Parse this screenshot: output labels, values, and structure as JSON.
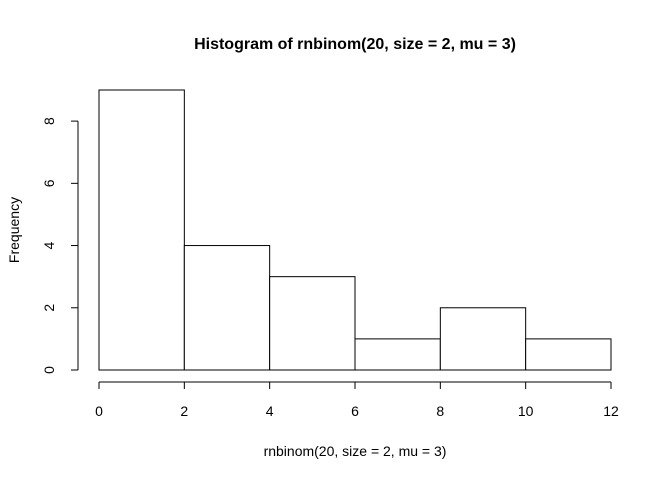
{
  "chart_data": {
    "type": "bar",
    "title": "Histogram of rnbinom(20, size = 2, mu = 3)",
    "xlabel": "rnbinom(20, size = 2, mu = 3)",
    "ylabel": "Frequency",
    "bins": [
      {
        "start": 0,
        "end": 2,
        "value": 9
      },
      {
        "start": 2,
        "end": 4,
        "value": 4
      },
      {
        "start": 4,
        "end": 6,
        "value": 3
      },
      {
        "start": 6,
        "end": 8,
        "value": 1
      },
      {
        "start": 8,
        "end": 10,
        "value": 2
      },
      {
        "start": 10,
        "end": 12,
        "value": 1
      }
    ],
    "xlim": [
      0,
      12
    ],
    "ylim": [
      0,
      9
    ],
    "x_ticks": [
      "0",
      "2",
      "4",
      "6",
      "8",
      "10",
      "12"
    ],
    "y_ticks": [
      "0",
      "2",
      "4",
      "6",
      "8"
    ],
    "grid": false,
    "colors": {
      "bar_fill": "#ffffff",
      "bar_stroke": "#000000"
    }
  }
}
